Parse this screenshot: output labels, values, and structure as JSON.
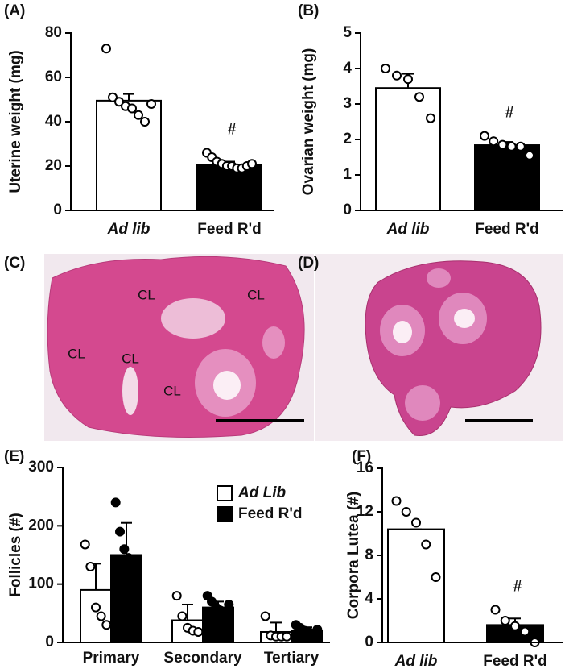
{
  "chart_data": [
    {
      "type": "bar",
      "panel": "(A)",
      "ylabel": "Uterine weight (mg)",
      "categories": [
        "Ad lib",
        "Feed R'd"
      ],
      "values": [
        49.5,
        20.5
      ],
      "errors": [
        3,
        1.5
      ],
      "colors": [
        "#ffffff",
        "#000000"
      ],
      "points": [
        [
          73,
          51,
          49,
          47,
          46,
          43,
          40,
          48
        ],
        [
          26,
          24,
          22,
          21,
          20,
          20,
          19,
          19,
          20,
          21
        ]
      ],
      "annotation": "#",
      "ylim": [
        0,
        80
      ],
      "yticks": [
        0,
        20,
        40,
        60,
        80
      ]
    },
    {
      "type": "bar",
      "panel": "(B)",
      "ylabel": "Ovarian weight (mg)",
      "categories": [
        "Ad lib",
        "Feed R'd"
      ],
      "values": [
        3.45,
        1.84
      ],
      "errors": [
        0.4,
        0.09
      ],
      "colors": [
        "#ffffff",
        "#000000"
      ],
      "points": [
        [
          4.0,
          3.8,
          3.7,
          3.2,
          2.6
        ],
        [
          2.1,
          1.95,
          1.85,
          1.8,
          1.8,
          1.55
        ]
      ],
      "annotation": "#",
      "ylim": [
        0,
        5
      ],
      "yticks": [
        0,
        1,
        2,
        3,
        4,
        5
      ]
    },
    {
      "type": "grouped_bar",
      "panel": "(E)",
      "ylabel": "Follicles (#)",
      "categories": [
        "Primary",
        "Secondary",
        "Tertiary"
      ],
      "series": [
        {
          "name": "Ad Lib",
          "color": "#ffffff",
          "values": [
            90,
            38,
            18
          ],
          "errors": [
            45,
            27,
            16
          ],
          "points": [
            [
              168,
              130,
              60,
              45,
              30
            ],
            [
              80,
              45,
              25,
              20,
              18
            ],
            [
              45,
              12,
              10,
              10,
              10
            ]
          ]
        },
        {
          "name": "Feed R'd",
          "color": "#000000",
          "values": [
            150,
            60,
            20
          ],
          "errors": [
            55,
            10,
            6
          ],
          "points": [
            [
              240,
              190,
              160,
              145,
              130,
              100
            ],
            [
              80,
              70,
              60,
              55,
              50,
              65
            ],
            [
              30,
              25,
              20,
              18,
              15,
              22
            ]
          ]
        }
      ],
      "ylim": [
        0,
        300
      ],
      "yticks": [
        0,
        100,
        200,
        300
      ]
    },
    {
      "type": "bar",
      "panel": "(F)",
      "ylabel": "Corpora Lutea (#)",
      "categories": [
        "Ad lib",
        "Feed R'd"
      ],
      "values": [
        10.4,
        1.6
      ],
      "errors": [
        0,
        0.6
      ],
      "colors": [
        "#ffffff",
        "#000000"
      ],
      "points": [
        [
          13,
          12,
          11,
          9,
          6
        ],
        [
          3,
          2,
          1.5,
          1,
          0
        ]
      ],
      "annotation": "#",
      "ylim": [
        0,
        16
      ],
      "yticks": [
        0,
        4,
        8,
        12,
        16
      ]
    }
  ],
  "images": [
    {
      "panel": "(C)",
      "annotations": [
        "CL",
        "CL",
        "CL",
        "CL",
        "CL"
      ]
    },
    {
      "panel": "(D)"
    }
  ]
}
